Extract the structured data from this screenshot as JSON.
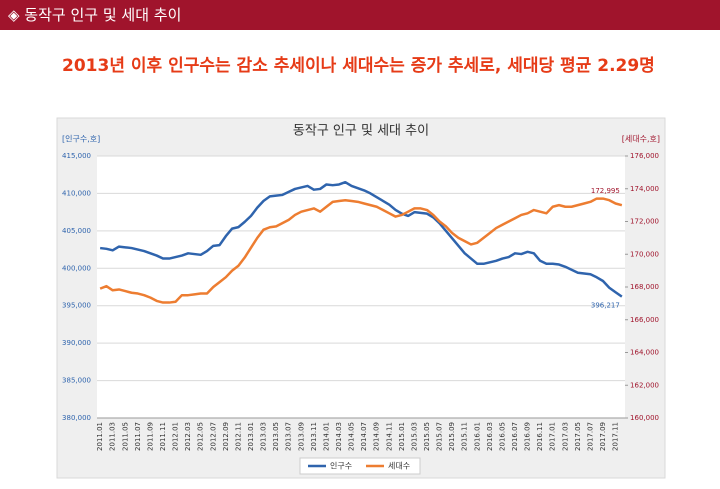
{
  "header": {
    "title": "◈ 동작구 인구 및 세대 추이"
  },
  "headline": "2013년 이후 인구수는 감소 추세이나 세대수는 증가 추세로, 세대당 평균 2.29명",
  "chart_data": {
    "type": "line",
    "title": "동작구 인구 및 세대 추이",
    "y_label": "[인구수,호]",
    "y2_label": "[세대수,호]",
    "categories": [
      "2011.01",
      null,
      "2011.03",
      null,
      "2011.05",
      null,
      "2011.07",
      null,
      "2011.09",
      null,
      "2011.11",
      null,
      "2012.01",
      null,
      "2012.03",
      null,
      "2012.05",
      null,
      "2012.07",
      null,
      "2012.09",
      null,
      "2012.11",
      null,
      "2013.01",
      null,
      "2013.03",
      null,
      "2013.05",
      null,
      "2013.07",
      null,
      "2013.09",
      null,
      "2013.11",
      null,
      "2014.01",
      null,
      "2014.03",
      null,
      "2014.05",
      null,
      "2014.07",
      null,
      "2014.09",
      null,
      "2014.11",
      null,
      "2015.01",
      null,
      "2015.03",
      null,
      "2015.05",
      null,
      "2015.07",
      null,
      "2015.09",
      null,
      "2015.11",
      null,
      "2016.01",
      null,
      "2016.03",
      null,
      "2016.05",
      null,
      "2016.07",
      null,
      "2016.09",
      null,
      "2016.11",
      null,
      "2017.01",
      null,
      "2017.03",
      null,
      "2017.05",
      null,
      "2017.07",
      null,
      "2017.09",
      null,
      "2017.11",
      null
    ],
    "series": [
      {
        "name": "인구수",
        "color": "#2f64ad",
        "values": [
          402700,
          402600,
          402400,
          402900,
          402800,
          402700,
          402500,
          402300,
          402000,
          401700,
          401300,
          401300,
          401500,
          401700,
          402000,
          401900,
          401800,
          402300,
          403000,
          403100,
          404300,
          405300,
          405500,
          406200,
          407000,
          408100,
          409000,
          409600,
          409700,
          409800,
          410200,
          410600,
          410800,
          411000,
          410500,
          410600,
          411200,
          411100,
          411200,
          411500,
          411000,
          410700,
          410400,
          410000,
          409500,
          409000,
          408500,
          407800,
          407300,
          407000,
          407500,
          407400,
          407300,
          406800,
          406000,
          405000,
          404000,
          403000,
          402000,
          401300,
          400600,
          400600,
          400800,
          401000,
          401300,
          401500,
          402000,
          401900,
          402200,
          402000,
          401000,
          400600,
          400600,
          400500,
          400200,
          399800,
          399400,
          399300,
          399200,
          398800,
          398300,
          397400,
          396800,
          396217
        ],
        "value_labels": {
          "83": "396,217"
        }
      },
      {
        "name": "세대수",
        "color": "#ed7d31",
        "axis": "y2",
        "values": [
          167900,
          168050,
          167800,
          167850,
          167750,
          167650,
          167600,
          167500,
          167350,
          167150,
          167050,
          167050,
          167100,
          167500,
          167500,
          167550,
          167600,
          167600,
          168000,
          168300,
          168600,
          169000,
          169300,
          169800,
          170400,
          171000,
          171500,
          171650,
          171700,
          171900,
          172100,
          172400,
          172600,
          172700,
          172800,
          172600,
          172900,
          173200,
          173250,
          173300,
          173250,
          173200,
          173100,
          173000,
          172900,
          172700,
          172500,
          172300,
          172400,
          172600,
          172800,
          172800,
          172700,
          172400,
          172000,
          171700,
          171300,
          171000,
          170800,
          170600,
          170700,
          171000,
          171300,
          171600,
          171800,
          172000,
          172200,
          172400,
          172500,
          172700,
          172600,
          172500,
          172900,
          173000,
          172900,
          172900,
          173000,
          173100,
          173200,
          173400,
          173400,
          173300,
          173100,
          172995
        ],
        "value_labels": {
          "83": "172,995"
        }
      }
    ],
    "ylim": [
      380000,
      415000
    ],
    "yticks": [
      {
        "value": 380000,
        "label": "380,000"
      },
      {
        "value": 385000,
        "label": "385,000"
      },
      {
        "value": 390000,
        "label": "390,000"
      },
      {
        "value": 395000,
        "label": "395,000"
      },
      {
        "value": 400000,
        "label": "400,000"
      },
      {
        "value": 405000,
        "label": "405,000"
      },
      {
        "value": 410000,
        "label": "410,000"
      },
      {
        "value": 415000,
        "label": "415,000"
      }
    ],
    "y2lim": [
      160000,
      176000
    ],
    "y2ticks": [
      {
        "value": 160000,
        "label": "160,000"
      },
      {
        "value": 162000,
        "label": "162,000"
      },
      {
        "value": 164000,
        "label": "164,000"
      },
      {
        "value": 166000,
        "label": "166,000"
      },
      {
        "value": 168000,
        "label": "168,000"
      },
      {
        "value": 170000,
        "label": "170,000"
      },
      {
        "value": 172000,
        "label": "172,000"
      },
      {
        "value": 174000,
        "label": "174,000"
      },
      {
        "value": 176000,
        "label": "176,000"
      }
    ],
    "grid": true,
    "legend": "bottom"
  }
}
